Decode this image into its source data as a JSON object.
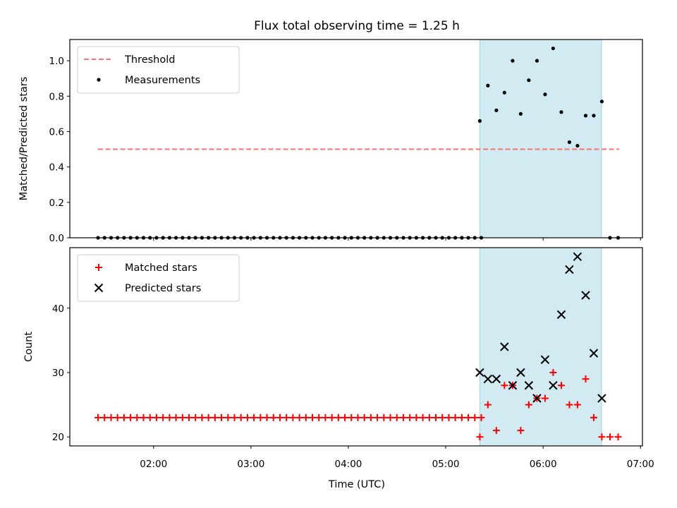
{
  "chart_data": {
    "title": "Flux total observing time = 1.25 h",
    "xlabel": "Time (UTC)",
    "x_ticks": [
      "02:00",
      "03:00",
      "04:00",
      "05:00",
      "06:00",
      "07:00"
    ],
    "x_tick_hours": [
      2,
      3,
      4,
      5,
      6,
      7
    ],
    "xlim_hours": [
      1.14,
      7.02
    ],
    "shaded_span_hours": [
      5.35,
      6.6
    ],
    "shaded_color": "#add8e6",
    "panels": [
      {
        "type": "scatter",
        "ylabel": "Matched/Predicted stars",
        "ylim": [
          0,
          1.12
        ],
        "y_ticks": [
          "0.0",
          "0.2",
          "0.4",
          "0.6",
          "0.8",
          "1.0"
        ],
        "legend_position": "upper-left",
        "threshold": {
          "name": "Threshold",
          "value": 0.5,
          "x_range_hours": [
            1.43,
            6.78
          ],
          "color": "#ff7070"
        },
        "series": [
          {
            "name": "Measurements",
            "color": "#000000",
            "marker": "dot",
            "points_low": {
              "x_start_hours": 1.43,
              "x_step_hours": 0.0667,
              "count": 60,
              "value": 0.0
            },
            "points_active": [
              {
                "x": 5.35,
                "y": 0.66
              },
              {
                "x": 5.433,
                "y": 0.86
              },
              {
                "x": 5.52,
                "y": 0.72
              },
              {
                "x": 5.603,
                "y": 0.82
              },
              {
                "x": 5.687,
                "y": 1.0
              },
              {
                "x": 5.77,
                "y": 0.7
              },
              {
                "x": 5.853,
                "y": 0.89
              },
              {
                "x": 5.937,
                "y": 1.0
              },
              {
                "x": 6.02,
                "y": 0.81
              },
              {
                "x": 6.103,
                "y": 1.07
              },
              {
                "x": 6.187,
                "y": 0.71
              },
              {
                "x": 6.27,
                "y": 0.54
              },
              {
                "x": 6.353,
                "y": 0.52
              },
              {
                "x": 6.437,
                "y": 0.69
              },
              {
                "x": 6.52,
                "y": 0.69
              },
              {
                "x": 6.603,
                "y": 0.77
              }
            ],
            "points_tail": [
              {
                "x": 6.687,
                "y": 0.0
              },
              {
                "x": 6.77,
                "y": 0.0
              }
            ]
          }
        ]
      },
      {
        "type": "scatter",
        "ylabel": "Count",
        "ylim": [
          18.6,
          49.4
        ],
        "y_ticks": [
          "20",
          "30",
          "40"
        ],
        "legend_position": "upper-left",
        "series": [
          {
            "name": "Matched stars",
            "color": "#ff0000",
            "marker": "plus",
            "points_low": {
              "x_start_hours": 1.43,
              "x_step_hours": 0.0667,
              "count": 60,
              "value": 23
            },
            "points_active": [
              {
                "x": 5.35,
                "y": 20
              },
              {
                "x": 5.433,
                "y": 25
              },
              {
                "x": 5.52,
                "y": 21
              },
              {
                "x": 5.603,
                "y": 28
              },
              {
                "x": 5.687,
                "y": 28
              },
              {
                "x": 5.77,
                "y": 21
              },
              {
                "x": 5.853,
                "y": 25
              },
              {
                "x": 5.937,
                "y": 26
              },
              {
                "x": 6.02,
                "y": 26
              },
              {
                "x": 6.103,
                "y": 30
              },
              {
                "x": 6.187,
                "y": 28
              },
              {
                "x": 6.27,
                "y": 25
              },
              {
                "x": 6.353,
                "y": 25
              },
              {
                "x": 6.437,
                "y": 29
              },
              {
                "x": 6.52,
                "y": 23
              },
              {
                "x": 6.603,
                "y": 20
              }
            ],
            "points_tail": [
              {
                "x": 6.687,
                "y": 20
              },
              {
                "x": 6.77,
                "y": 20
              }
            ]
          },
          {
            "name": "Predicted stars",
            "color": "#000000",
            "marker": "x",
            "points_active": [
              {
                "x": 5.35,
                "y": 30
              },
              {
                "x": 5.433,
                "y": 29
              },
              {
                "x": 5.52,
                "y": 29
              },
              {
                "x": 5.603,
                "y": 34
              },
              {
                "x": 5.687,
                "y": 28
              },
              {
                "x": 5.77,
                "y": 30
              },
              {
                "x": 5.853,
                "y": 28
              },
              {
                "x": 5.937,
                "y": 26
              },
              {
                "x": 6.02,
                "y": 32
              },
              {
                "x": 6.103,
                "y": 28
              },
              {
                "x": 6.187,
                "y": 39
              },
              {
                "x": 6.27,
                "y": 46
              },
              {
                "x": 6.353,
                "y": 48
              },
              {
                "x": 6.437,
                "y": 42
              },
              {
                "x": 6.52,
                "y": 33
              },
              {
                "x": 6.603,
                "y": 26
              }
            ]
          }
        ]
      }
    ]
  }
}
